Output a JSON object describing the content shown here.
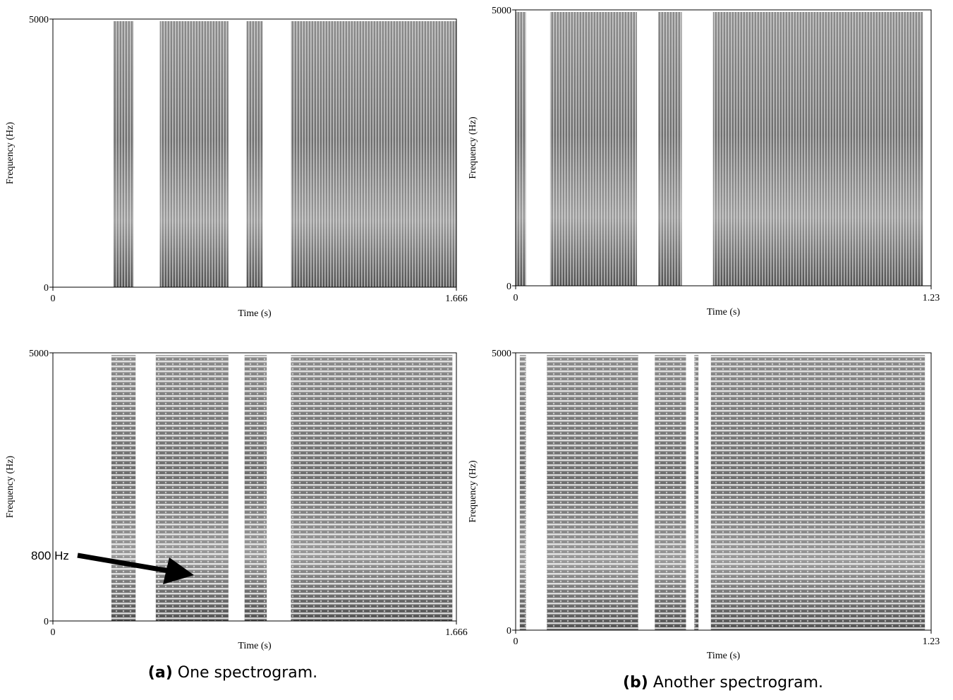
{
  "panels": [
    {
      "ylabel": "Frequency (Hz)",
      "xlabel": "Time (s)",
      "yticks": [
        0,
        5000
      ],
      "xticks": [
        0,
        1.666
      ]
    },
    {
      "ylabel": "Frequency (Hz)",
      "xlabel": "Time (s)",
      "yticks": [
        0,
        5000
      ],
      "xticks": [
        0,
        1.23
      ]
    },
    {
      "ylabel": "Frequency (Hz)",
      "xlabel": "Time (s)",
      "yticks": [
        0,
        5000
      ],
      "xticks": [
        0,
        1.666
      ],
      "annotation": "800 Hz"
    },
    {
      "ylabel": "Frequency (Hz)",
      "xlabel": "Time (s)",
      "yticks": [
        0,
        5000
      ],
      "xticks": [
        0,
        1.23
      ]
    }
  ],
  "captions": [
    {
      "label": "(a)",
      "text": "One spectrogram."
    },
    {
      "label": "(b)",
      "text": "Another spectrogram."
    }
  ]
}
